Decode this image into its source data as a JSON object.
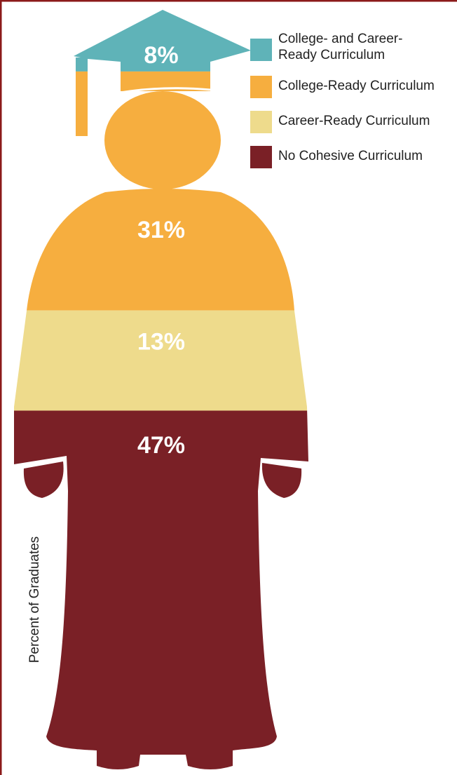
{
  "chart_data": {
    "type": "pictogram",
    "categories": [
      "College- and Career-\nReady Curriculum",
      "College-Ready Curriculum",
      "Career-Ready Curriculum",
      "No Cohesive Curriculum"
    ],
    "values": [
      8,
      31,
      13,
      47
    ],
    "value_labels": [
      "8%",
      "31%",
      "13%",
      "47%"
    ],
    "colors": [
      "#5fb3b8",
      "#f6ae3f",
      "#eedb8c",
      "#7a2026"
    ],
    "ylabel": "Percent of Graduates"
  }
}
